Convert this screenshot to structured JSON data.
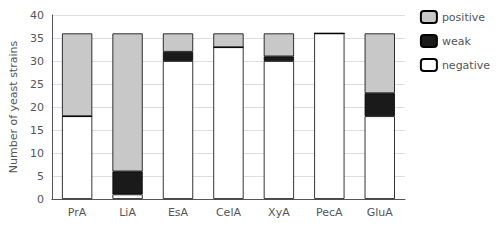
{
  "chart_data": {
    "type": "bar",
    "stacked": true,
    "categories": [
      "PrA",
      "LiA",
      "EsA",
      "CelA",
      "XyA",
      "PecA",
      "GluA"
    ],
    "series": [
      {
        "name": "negative",
        "color": "#ffffff",
        "values": [
          18,
          1,
          30,
          33,
          30,
          36,
          18
        ]
      },
      {
        "name": "weak",
        "color": "#1a1a1a",
        "values": [
          0,
          5,
          2,
          0,
          1,
          0,
          5
        ]
      },
      {
        "name": "positive",
        "color": "#c8c8c8",
        "values": [
          18,
          30,
          4,
          3,
          5,
          0,
          13
        ]
      }
    ],
    "ylabel": "Number of yeast strains",
    "ylim": [
      0,
      40
    ],
    "yticks": [
      0,
      5,
      10,
      15,
      20,
      25,
      30,
      35,
      40
    ],
    "grid": true,
    "legend": "upper right"
  }
}
